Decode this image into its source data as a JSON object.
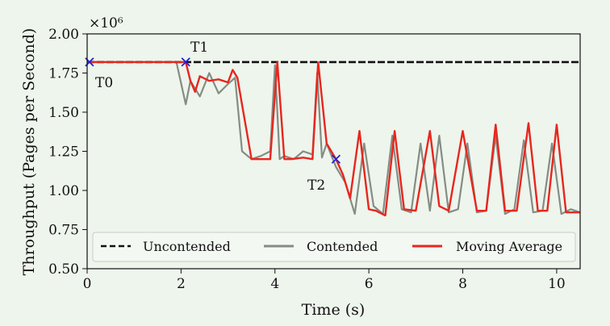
{
  "chart_data": {
    "type": "line",
    "title": "",
    "xlabel": "Time (s)",
    "ylabel": "Throughput (Pages per Second)",
    "y_multiplier_label": "×10⁶",
    "xlim": [
      0,
      10.5
    ],
    "ylim": [
      0.5,
      2.0
    ],
    "x_ticks": [
      0,
      2,
      4,
      6,
      8,
      10
    ],
    "x_tick_labels": [
      "0",
      "2",
      "4",
      "6",
      "8",
      "10"
    ],
    "y_ticks": [
      0.5,
      0.75,
      1.0,
      1.25,
      1.5,
      1.75,
      2.0
    ],
    "y_tick_labels": [
      "0.50",
      "0.75",
      "1.00",
      "1.25",
      "1.50",
      "1.75",
      "2.00"
    ],
    "grid": false,
    "legend": {
      "placement": "bottom",
      "entries": [
        "Uncontended",
        "Contended",
        "Moving Average"
      ]
    },
    "colors": {
      "uncontended": "#111111",
      "contended": "#858c84",
      "moving_average": "#e8261e",
      "markers": "#2222cc"
    },
    "series": [
      {
        "name": "Uncontended",
        "style": "dashed",
        "x": [
          0,
          10.5
        ],
        "y": [
          1.82,
          1.82
        ]
      },
      {
        "name": "Contended",
        "style": "solid",
        "x": [
          0,
          1.9,
          2.1,
          2.2,
          2.4,
          2.6,
          2.8,
          3.0,
          3.15,
          3.3,
          3.5,
          3.7,
          3.9,
          4.0,
          4.1,
          4.2,
          4.4,
          4.6,
          4.8,
          4.9,
          5.0,
          5.1,
          5.3,
          5.5,
          5.7,
          5.9,
          6.1,
          6.3,
          6.5,
          6.7,
          6.9,
          7.1,
          7.3,
          7.5,
          7.7,
          7.9,
          8.1,
          8.3,
          8.5,
          8.7,
          8.9,
          9.1,
          9.3,
          9.5,
          9.7,
          9.9,
          10.1,
          10.3,
          10.5
        ],
        "y": [
          1.82,
          1.82,
          1.55,
          1.7,
          1.6,
          1.75,
          1.62,
          1.68,
          1.72,
          1.25,
          1.2,
          1.22,
          1.25,
          1.8,
          1.2,
          1.22,
          1.2,
          1.25,
          1.23,
          1.75,
          1.21,
          1.3,
          1.15,
          1.05,
          0.85,
          1.3,
          0.9,
          0.85,
          1.35,
          0.88,
          0.86,
          1.3,
          0.87,
          1.35,
          0.86,
          0.88,
          1.3,
          0.86,
          0.87,
          1.35,
          0.85,
          0.88,
          1.32,
          0.86,
          0.87,
          1.3,
          0.85,
          0.88,
          0.86
        ]
      },
      {
        "name": "Moving Average",
        "style": "solid",
        "x": [
          0,
          2.1,
          2.2,
          2.3,
          2.4,
          2.6,
          2.8,
          3.0,
          3.1,
          3.2,
          3.5,
          3.9,
          4.05,
          4.2,
          4.35,
          4.6,
          4.8,
          4.92,
          5.1,
          5.3,
          5.45,
          5.6,
          5.8,
          6.0,
          6.15,
          6.35,
          6.55,
          6.75,
          7.0,
          7.3,
          7.5,
          7.7,
          8.0,
          8.3,
          8.5,
          8.7,
          8.9,
          9.15,
          9.4,
          9.6,
          9.8,
          10.0,
          10.2,
          10.4,
          10.5
        ],
        "y": [
          1.82,
          1.82,
          1.7,
          1.63,
          1.73,
          1.7,
          1.71,
          1.69,
          1.77,
          1.72,
          1.2,
          1.2,
          1.82,
          1.2,
          1.2,
          1.21,
          1.2,
          1.82,
          1.3,
          1.2,
          1.1,
          0.95,
          1.38,
          0.88,
          0.87,
          0.84,
          1.38,
          0.88,
          0.87,
          1.38,
          0.9,
          0.87,
          1.38,
          0.87,
          0.87,
          1.42,
          0.87,
          0.87,
          1.43,
          0.87,
          0.87,
          1.42,
          0.86,
          0.86,
          0.86
        ]
      }
    ],
    "annotations": [
      {
        "label": "T0",
        "x": 0.05,
        "y": 1.82
      },
      {
        "label": "T1",
        "x": 2.1,
        "y": 1.82
      },
      {
        "label": "T2",
        "x": 5.3,
        "y": 1.2
      }
    ]
  }
}
